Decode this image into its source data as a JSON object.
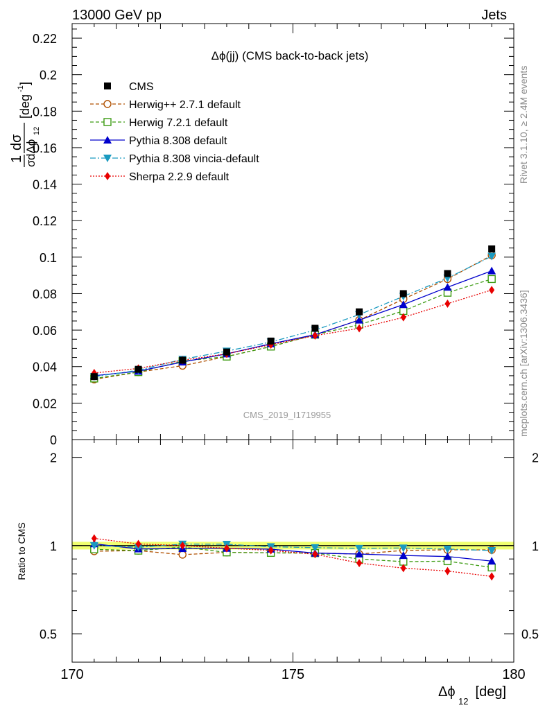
{
  "header": {
    "left": "13000 GeV pp",
    "right": "Jets"
  },
  "side_labels": {
    "rivet": "Rivet 3.1.10, ≥ 2.4M events",
    "mcplots": "mcplots.cern.ch [arXiv:1306.3436]"
  },
  "chart_data": {
    "type": "line",
    "title": "Δϕ(jj) (CMS back-to-back jets)",
    "watermark": "CMS_2019_I1719955",
    "xlabel_main": "Δϕ",
    "xlabel_sub": "12",
    "xlabel_unit": " [deg]",
    "xlim": [
      170,
      180
    ],
    "x_ticks": [
      170,
      175,
      180
    ],
    "ylabel": "1/σ dσ/dΔϕ12 [deg⁻¹]",
    "ylim": [
      0,
      0.228
    ],
    "y_ticks": [
      "0",
      "0.02",
      "0.04",
      "0.06",
      "0.08",
      "0.1",
      "0.12",
      "0.14",
      "0.16",
      "0.18",
      "0.2",
      "0.22"
    ],
    "ratio": {
      "ylabel": "Ratio to CMS",
      "ylim": [
        0.4,
        2.3
      ],
      "log": true,
      "ticks": [
        "0.5",
        "1",
        "2"
      ]
    },
    "x": [
      170.5,
      171.5,
      172.5,
      173.5,
      174.5,
      175.5,
      176.5,
      177.5,
      178.5,
      179.5
    ],
    "series": [
      {
        "name": "CMS",
        "color": "#000000",
        "marker": "square",
        "dash": "none",
        "values": [
          0.0345,
          0.0385,
          0.0435,
          0.048,
          0.054,
          0.061,
          0.07,
          0.08,
          0.091,
          0.1045
        ]
      },
      {
        "name": "Herwig++ 2.7.1 default",
        "color": "#b05000",
        "marker": "circle-open",
        "dash": "5,3",
        "values": [
          0.033,
          0.037,
          0.0405,
          0.0455,
          0.051,
          0.0575,
          0.0655,
          0.077,
          0.088,
          0.101
        ]
      },
      {
        "name": "Herwig 7.2.1 default",
        "color": "#3a9a10",
        "marker": "square-open",
        "dash": "5,3",
        "values": [
          0.0335,
          0.037,
          0.043,
          0.0455,
          0.051,
          0.0575,
          0.063,
          0.0705,
          0.0805,
          0.088
        ]
      },
      {
        "name": "Pythia 8.308 default",
        "color": "#0000cc",
        "marker": "triangle-up",
        "dash": "none",
        "values": [
          0.035,
          0.0375,
          0.0425,
          0.047,
          0.0525,
          0.0575,
          0.0655,
          0.074,
          0.0835,
          0.0925
        ]
      },
      {
        "name": "Pythia 8.308 vincia-default",
        "color": "#1a9ac0",
        "marker": "triangle-down",
        "dash": "8,3,2,3",
        "values": [
          0.0345,
          0.038,
          0.044,
          0.0485,
          0.0535,
          0.06,
          0.0685,
          0.0785,
          0.0885,
          0.1005
        ]
      },
      {
        "name": "Sherpa 2.2.9 default",
        "color": "#e80000",
        "marker": "diamond",
        "dash": "2,2",
        "values": [
          0.0365,
          0.039,
          0.0435,
          0.047,
          0.052,
          0.057,
          0.061,
          0.067,
          0.0745,
          0.082
        ]
      }
    ]
  }
}
